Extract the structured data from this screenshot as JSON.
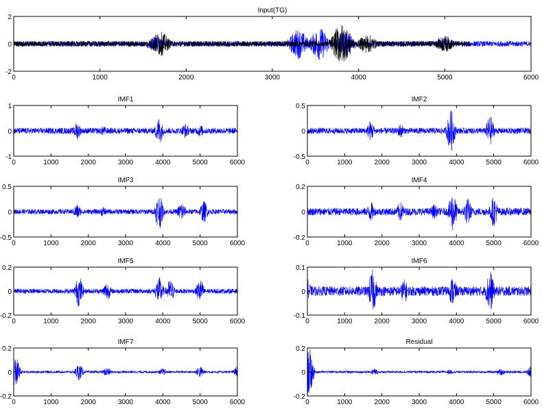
{
  "figure": {
    "colors": {
      "primary": "#0000ff",
      "secondary": "#000000"
    }
  },
  "chart_data": [
    {
      "type": "line",
      "title": "Input(TG)",
      "xlim": [
        0,
        6000
      ],
      "ylim": [
        -2,
        2
      ],
      "xticks": [
        "0",
        "1000",
        "2000",
        "3000",
        "4000",
        "5000",
        "6000"
      ],
      "yticks": [
        "-2",
        "0",
        "2"
      ],
      "series": [
        {
          "color": "#0000ff",
          "x_range": [
            0,
            6000
          ],
          "baseline_amplitude": 0.2,
          "bursts": [
            [
              1650,
              0.6
            ],
            [
              3300,
              1.1
            ],
            [
              3550,
              1.2
            ],
            [
              3850,
              1.0
            ],
            [
              5000,
              0.5
            ]
          ]
        },
        {
          "color": "#000000",
          "x_range": [
            0,
            5300
          ],
          "baseline_amplitude": 0.2,
          "bursts": [
            [
              1700,
              0.9
            ],
            [
              3800,
              1.5
            ],
            [
              4100,
              0.7
            ],
            [
              5000,
              0.6
            ]
          ]
        }
      ]
    },
    {
      "type": "line",
      "title": "IMF1",
      "xlim": [
        0,
        6000
      ],
      "ylim": [
        -1,
        1
      ],
      "xticks": [
        "0",
        "1000",
        "2000",
        "3000",
        "4000",
        "5000",
        "6000"
      ],
      "yticks": [
        "-1",
        "0",
        "1"
      ],
      "series": [
        {
          "color": "#0000ff",
          "baseline_amplitude": 0.12,
          "bursts": [
            [
              1700,
              0.35
            ],
            [
              2400,
              0.2
            ],
            [
              3900,
              0.55
            ],
            [
              4600,
              0.3
            ],
            [
              5000,
              0.25
            ]
          ]
        }
      ]
    },
    {
      "type": "line",
      "title": "IMF2",
      "xlim": [
        0,
        6000
      ],
      "ylim": [
        -0.5,
        0.5
      ],
      "xticks": [
        "0",
        "1000",
        "2000",
        "3000",
        "4000",
        "5000",
        "6000"
      ],
      "yticks": [
        "-0.5",
        "0",
        "0.5"
      ],
      "series": [
        {
          "color": "#0000ff",
          "baseline_amplitude": 0.06,
          "bursts": [
            [
              1700,
              0.2
            ],
            [
              2500,
              0.15
            ],
            [
              3850,
              0.42
            ],
            [
              4900,
              0.3
            ]
          ]
        }
      ]
    },
    {
      "type": "line",
      "title": "IMF3",
      "xlim": [
        0,
        6000
      ],
      "ylim": [
        -0.5,
        0.5
      ],
      "xticks": [
        "0",
        "1000",
        "2000",
        "3000",
        "4000",
        "5000",
        "6000"
      ],
      "yticks": [
        "-0.5",
        "0",
        "0.5"
      ],
      "series": [
        {
          "color": "#0000ff",
          "baseline_amplitude": 0.05,
          "bursts": [
            [
              1700,
              0.15
            ],
            [
              2400,
              0.1
            ],
            [
              3900,
              0.35
            ],
            [
              4500,
              0.2
            ],
            [
              5100,
              0.22
            ]
          ]
        }
      ]
    },
    {
      "type": "line",
      "title": "IMF4",
      "xlim": [
        0,
        6000
      ],
      "ylim": [
        -0.2,
        0.2
      ],
      "xticks": [
        "0",
        "1000",
        "2000",
        "3000",
        "4000",
        "5000",
        "6000"
      ],
      "yticks": [
        "-0.2",
        "0",
        "0.2"
      ],
      "series": [
        {
          "color": "#0000ff",
          "baseline_amplitude": 0.03,
          "bursts": [
            [
              1700,
              0.08
            ],
            [
              2500,
              0.08
            ],
            [
              3400,
              0.06
            ],
            [
              3900,
              0.16
            ],
            [
              4300,
              0.11
            ],
            [
              5000,
              0.12
            ]
          ]
        }
      ]
    },
    {
      "type": "line",
      "title": "IMF5",
      "xlim": [
        0,
        6000
      ],
      "ylim": [
        -0.2,
        0.2
      ],
      "xticks": [
        "0",
        "1000",
        "2000",
        "3000",
        "4000",
        "5000",
        "6000"
      ],
      "yticks": [
        "-0.2",
        "0",
        "0.2"
      ],
      "series": [
        {
          "color": "#0000ff",
          "baseline_amplitude": 0.02,
          "bursts": [
            [
              1750,
              0.13
            ],
            [
              2500,
              0.08
            ],
            [
              3900,
              0.12
            ],
            [
              4200,
              0.1
            ],
            [
              5000,
              0.1
            ]
          ]
        }
      ]
    },
    {
      "type": "line",
      "title": "IMF6",
      "xlim": [
        0,
        6000
      ],
      "ylim": [
        -0.1,
        0.1
      ],
      "xticks": [
        "0",
        "1000",
        "2000",
        "3000",
        "4000",
        "5000",
        "6000"
      ],
      "yticks": [
        "-0.1",
        "0",
        "0.1"
      ],
      "series": [
        {
          "color": "#0000ff",
          "baseline_amplitude": 0.02,
          "bursts": [
            [
              0,
              0.05
            ],
            [
              1750,
              0.09
            ],
            [
              2600,
              0.05
            ],
            [
              3900,
              0.06
            ],
            [
              4900,
              0.09
            ]
          ]
        }
      ]
    },
    {
      "type": "line",
      "title": "IMF7",
      "xlim": [
        0,
        6000
      ],
      "ylim": [
        -0.2,
        0.2
      ],
      "xticks": [
        "0",
        "1000",
        "2000",
        "3000",
        "4000",
        "5000",
        "6000"
      ],
      "yticks": [
        "-0.2",
        "0",
        "0.2"
      ],
      "series": [
        {
          "color": "#0000ff",
          "baseline_amplitude": 0.01,
          "bursts": [
            [
              50,
              0.13
            ],
            [
              1750,
              0.07
            ],
            [
              2500,
              0.04
            ],
            [
              4000,
              0.03
            ],
            [
              5000,
              0.05
            ],
            [
              6000,
              0.05
            ]
          ]
        }
      ]
    },
    {
      "type": "line",
      "title": "Residual",
      "xlim": [
        0,
        6000
      ],
      "ylim": [
        -0.2,
        0.2
      ],
      "xticks": [
        "0",
        "1000",
        "2000",
        "3000",
        "4000",
        "5000",
        "6000"
      ],
      "yticks": [
        "-0.2",
        "0",
        "0.2"
      ],
      "series": [
        {
          "color": "#0000ff",
          "baseline_amplitude": 0.01,
          "bursts": [
            [
              50,
              0.2
            ],
            [
              1800,
              0.03
            ],
            [
              3800,
              0.02
            ],
            [
              5200,
              0.03
            ],
            [
              6000,
              0.05
            ]
          ]
        }
      ]
    }
  ]
}
